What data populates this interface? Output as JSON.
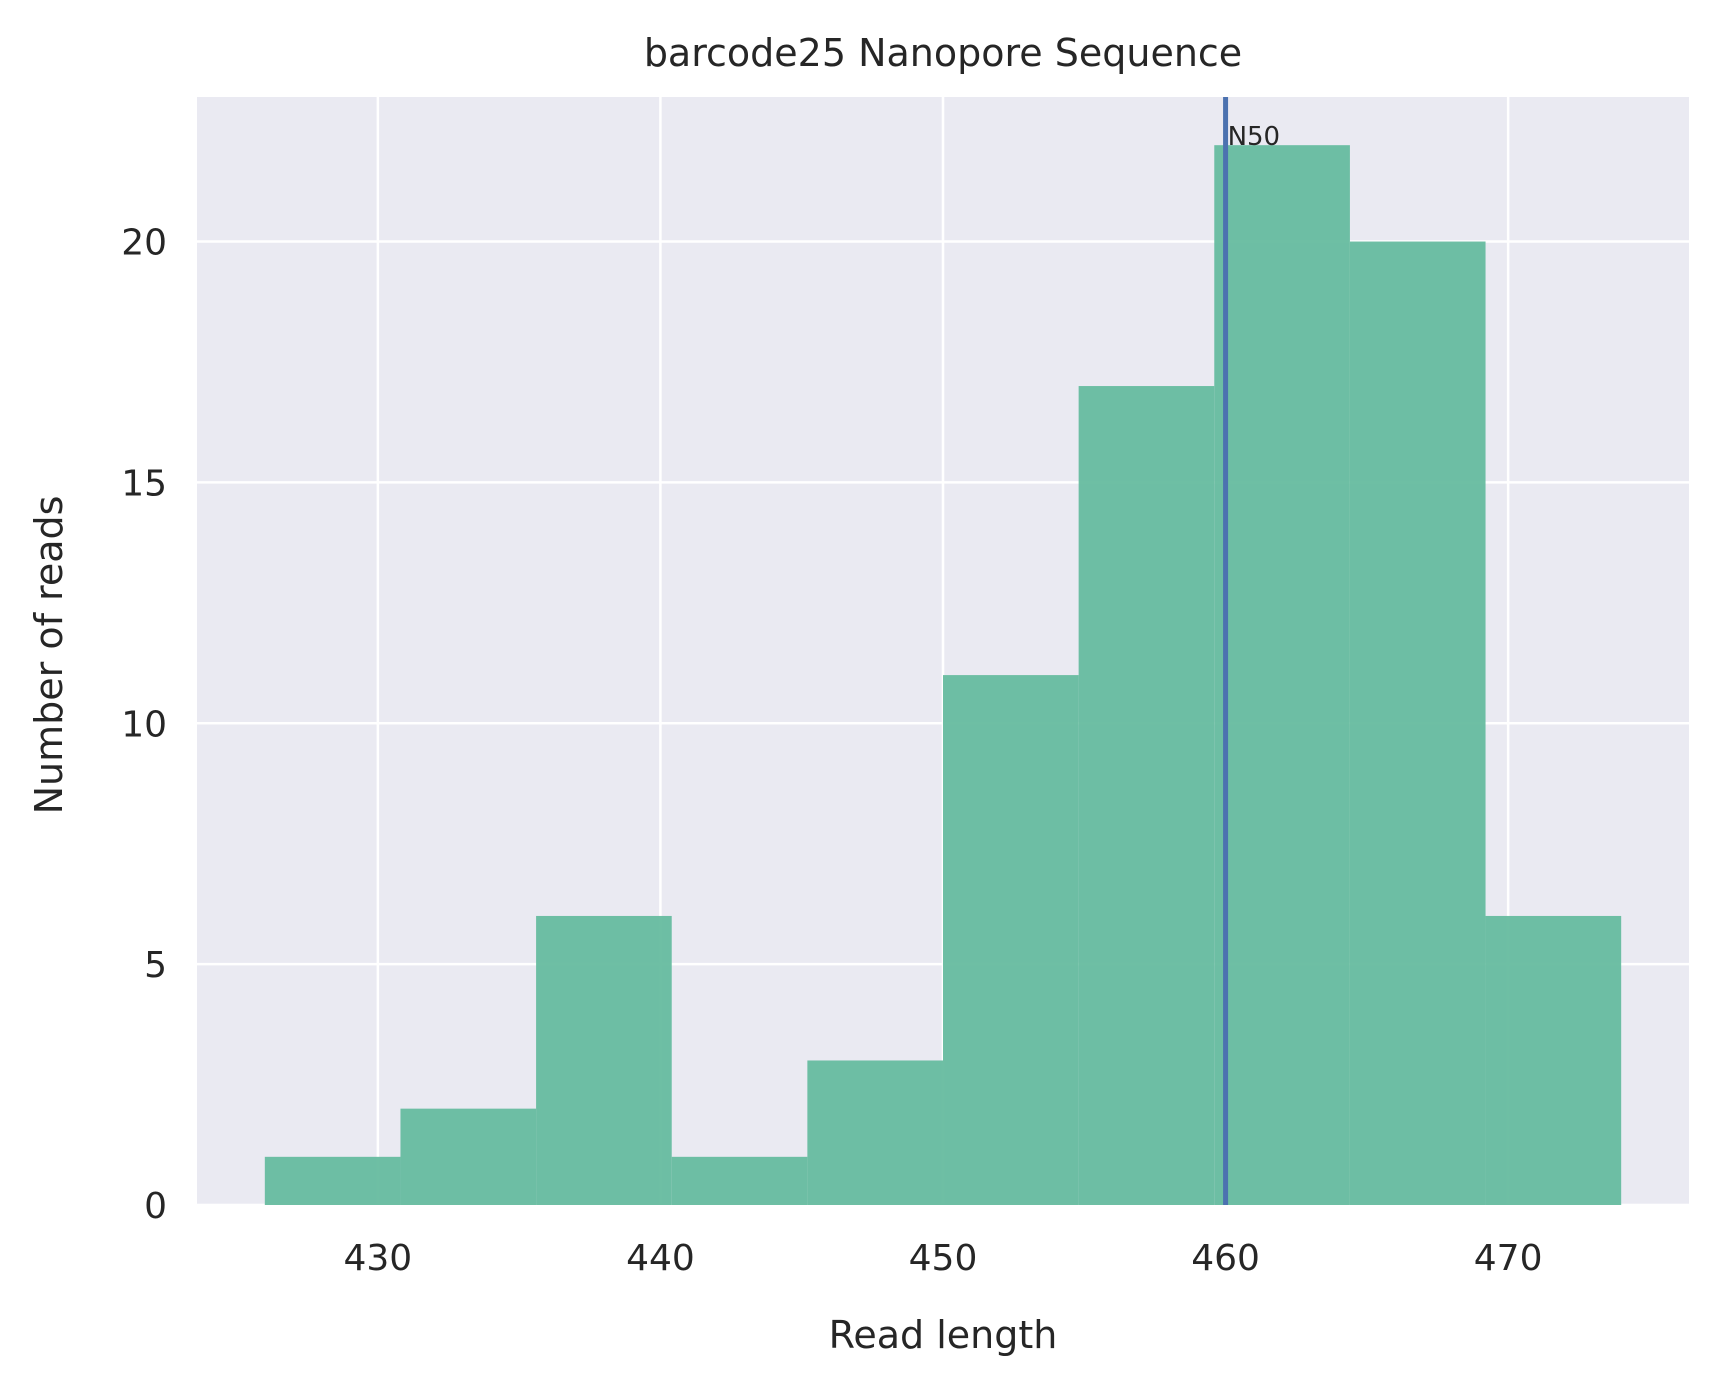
{
  "chart_data": {
    "type": "bar",
    "title": "barcode25 Nanopore Sequence",
    "xlabel": "Read length",
    "ylabel": "Number of reads",
    "bin_edges": [
      426,
      430.8,
      435.6,
      440.4,
      445.2,
      450,
      454.8,
      459.6,
      464.4,
      469.2,
      474
    ],
    "values": [
      1,
      2,
      6,
      1,
      3,
      11,
      17,
      22,
      20,
      6
    ],
    "xlim": [
      423.6,
      476.4
    ],
    "ylim": [
      0,
      23
    ],
    "xticks": [
      430,
      440,
      450,
      460,
      470
    ],
    "yticks": [
      0,
      5,
      10,
      15,
      20
    ],
    "n50": {
      "x": 460,
      "label": "N50"
    },
    "grid": true,
    "colors": {
      "bar": "#66bc9f",
      "n50_line": "#4c72b0",
      "plot_background": "#eaeaf2",
      "grid": "#ffffff",
      "text": "#262626"
    }
  }
}
